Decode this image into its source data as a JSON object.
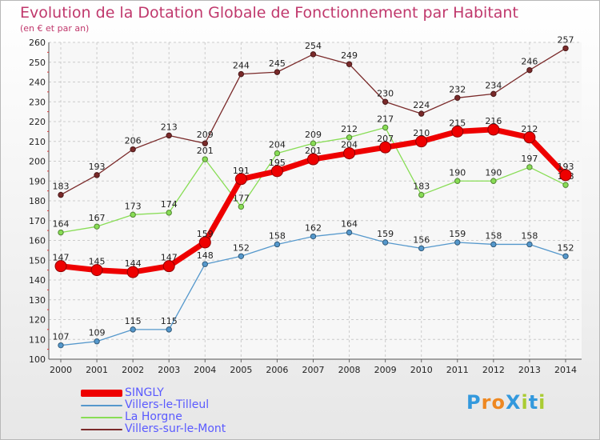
{
  "chart_data": {
    "type": "line",
    "title": "Evolution de la Dotation Globale de Fonctionnement par Habitant",
    "subtitle": "(en € et par an)",
    "xlabel": "",
    "ylabel": "",
    "categories": [
      "2000",
      "2001",
      "2002",
      "2003",
      "2004",
      "2005",
      "2006",
      "2007",
      "2008",
      "2009",
      "2010",
      "2011",
      "2012",
      "2013",
      "2014"
    ],
    "ylim": [
      100,
      260
    ],
    "yticks": [
      100,
      110,
      120,
      130,
      140,
      150,
      160,
      170,
      180,
      190,
      200,
      210,
      220,
      230,
      240,
      250,
      260
    ],
    "grid": true,
    "legend_position": "bottom-left",
    "series": [
      {
        "name": "Villers-sur-le-Mont",
        "color": "#7a2a2a",
        "values": [
          183,
          193,
          206,
          213,
          209,
          244,
          245,
          254,
          249,
          230,
          224,
          232,
          234,
          246,
          257
        ]
      },
      {
        "name": "La Horgne",
        "color": "#88dd55",
        "values": [
          164,
          167,
          173,
          174,
          201,
          177,
          204,
          209,
          212,
          217,
          183,
          190,
          190,
          197,
          188
        ]
      },
      {
        "name": "Villers-le-Tilleul",
        "color": "#5598cc",
        "values": [
          107,
          109,
          115,
          115,
          148,
          152,
          158,
          162,
          164,
          159,
          156,
          159,
          158,
          158,
          152
        ]
      },
      {
        "name": "SINGLY",
        "color": "#ee0000",
        "values": [
          147,
          145,
          144,
          147,
          159,
          191,
          195,
          201,
          204,
          207,
          210,
          215,
          216,
          212,
          193
        ]
      }
    ]
  },
  "legend": {
    "items": [
      {
        "label": "SINGLY",
        "color": "#ee0000"
      },
      {
        "label": "Villers-le-Tilleul",
        "color": "#5598cc"
      },
      {
        "label": "La Horgne",
        "color": "#88dd55"
      },
      {
        "label": "Villers-sur-le-Mont",
        "color": "#7a2a2a"
      }
    ]
  },
  "brand": {
    "text": "ProXiti",
    "letters": [
      "P",
      "r",
      "o",
      "X",
      "i",
      "t",
      "i"
    ],
    "colors": [
      "#3399dd",
      "#ee8822",
      "#ee8822",
      "#3399dd",
      "#aacc33",
      "#3399dd",
      "#aacc33"
    ]
  }
}
